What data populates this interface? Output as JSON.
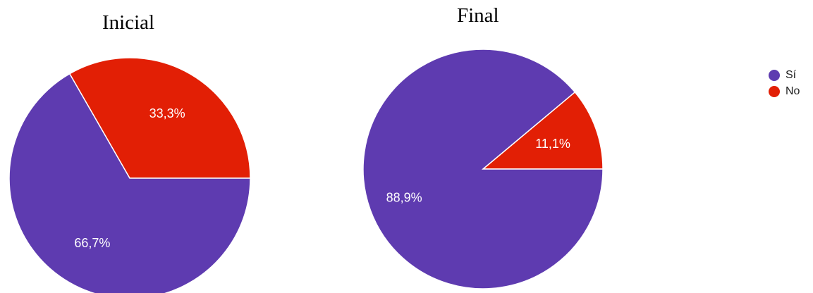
{
  "colors": {
    "si": "#5e3bb0",
    "no": "#e21f05"
  },
  "legend": [
    {
      "label": "Sí",
      "color": "#5e3bb0"
    },
    {
      "label": "No",
      "color": "#e21f05"
    }
  ],
  "chart_data": [
    {
      "type": "pie",
      "title": "Inicial",
      "slices": [
        {
          "label": "Sí",
          "value": 66.7,
          "display": "66,7%",
          "color": "#5e3bb0"
        },
        {
          "label": "No",
          "value": 33.3,
          "display": "33,3%",
          "color": "#e21f05"
        }
      ],
      "legend_position": "top-right"
    },
    {
      "type": "pie",
      "title": "Final",
      "slices": [
        {
          "label": "Sí",
          "value": 88.9,
          "display": "88,9%",
          "color": "#5e3bb0"
        },
        {
          "label": "No",
          "value": 11.1,
          "display": "11,1%",
          "color": "#e21f05"
        }
      ],
      "legend_position": "top-right"
    }
  ]
}
